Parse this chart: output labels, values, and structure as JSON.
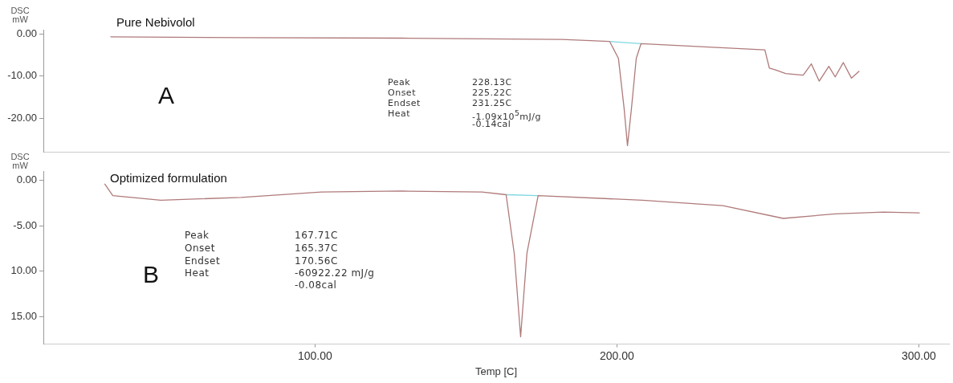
{
  "chart_data": [
    {
      "type": "line",
      "title": "Pure Nebivolol",
      "ylabel": "DSC mW",
      "xlim": [
        10,
        310
      ],
      "ylim": [
        -28,
        1
      ],
      "yticks": [
        {
          "value": 0,
          "label": "0.00"
        },
        {
          "value": -10,
          "label": "-10.00"
        },
        {
          "value": -20,
          "label": "-20.00"
        }
      ],
      "tick_labels": "y",
      "grid": false,
      "legend": false,
      "marker": "none",
      "line_style": "solid",
      "annotations": [
        "A",
        "Peak",
        "228.13C",
        "Onset",
        "225.22C",
        "Endset",
        "231.25C",
        "Heat",
        "-1.09x10$^{5}$mJ/g",
        "-0.14cal"
      ],
      "series": [
        {
          "color": "#b07a7a",
          "x": [
            32.2,
            75.5,
            128.7,
            181.9,
            197.6,
            200.5,
            202.4,
            203.5,
            204.8,
            206.4,
            208,
            249,
            250.5,
            252.4,
            255.9,
            261.7,
            264.4,
            267,
            270.2,
            272.3,
            275,
            277.7,
            280.3
          ],
          "values": [
            -0.7,
            -0.9,
            -1.0,
            -1.3,
            -1.8,
            -5.8,
            -17.8,
            -26.5,
            -17.8,
            -5.8,
            -2.3,
            -3.8,
            -8.1,
            -8.5,
            -9.4,
            -9.8,
            -7.1,
            -11.2,
            -7.7,
            -10.2,
            -6.8,
            -10.5,
            -8.8
          ]
        },
        {
          "color": "#7fd8e0",
          "x": [
            197.6,
            208
          ],
          "values": [
            -1.8,
            -2.3
          ]
        }
      ]
    },
    {
      "type": "line",
      "title": "Optimized formulation",
      "ylabel": "DSC mW",
      "xlabel": "Temp [C]",
      "xlim": [
        10,
        310
      ],
      "xticks": [
        {
          "value": 100,
          "label": "100.00"
        },
        {
          "value": 200,
          "label": "200.00"
        },
        {
          "value": 300,
          "label": "300.00"
        }
      ],
      "ylim": [
        -18,
        1
      ],
      "yticks": [
        {
          "value": 0,
          "label": "0.00"
        },
        {
          "value": -5,
          "label": "-5.00"
        },
        {
          "value": -10,
          "label": "10.00"
        },
        {
          "value": -15,
          "label": "15.00"
        }
      ],
      "grid": false,
      "legend": false,
      "marker": "none",
      "line_style": "solid",
      "annotations": [
        "B",
        "Peak",
        "167.71C",
        "Onset",
        "165.37C",
        "Endset",
        "170.56C",
        "Heat",
        "-60922.22 mJ/g",
        "-0.08cal"
      ],
      "series": [
        {
          "color": "#b07a7a",
          "x": [
            30.3,
            33.0,
            48.9,
            75.5,
            102.1,
            128.7,
            155.3,
            163.3,
            166.0,
            168.1,
            170.2,
            173.9,
            208.5,
            235.1,
            255.1,
            272.3,
            288.3,
            300.3
          ],
          "values": [
            -0.4,
            -1.7,
            -2.2,
            -1.9,
            -1.3,
            -1.2,
            -1.3,
            -1.6,
            -8.1,
            -17.2,
            -8.0,
            -1.7,
            -2.2,
            -2.8,
            -4.2,
            -3.7,
            -3.5,
            -3.6
          ]
        },
        {
          "color": "#7fd8e0",
          "x": [
            163.3,
            173.9
          ],
          "values": [
            -1.6,
            -1.7
          ]
        }
      ]
    }
  ]
}
